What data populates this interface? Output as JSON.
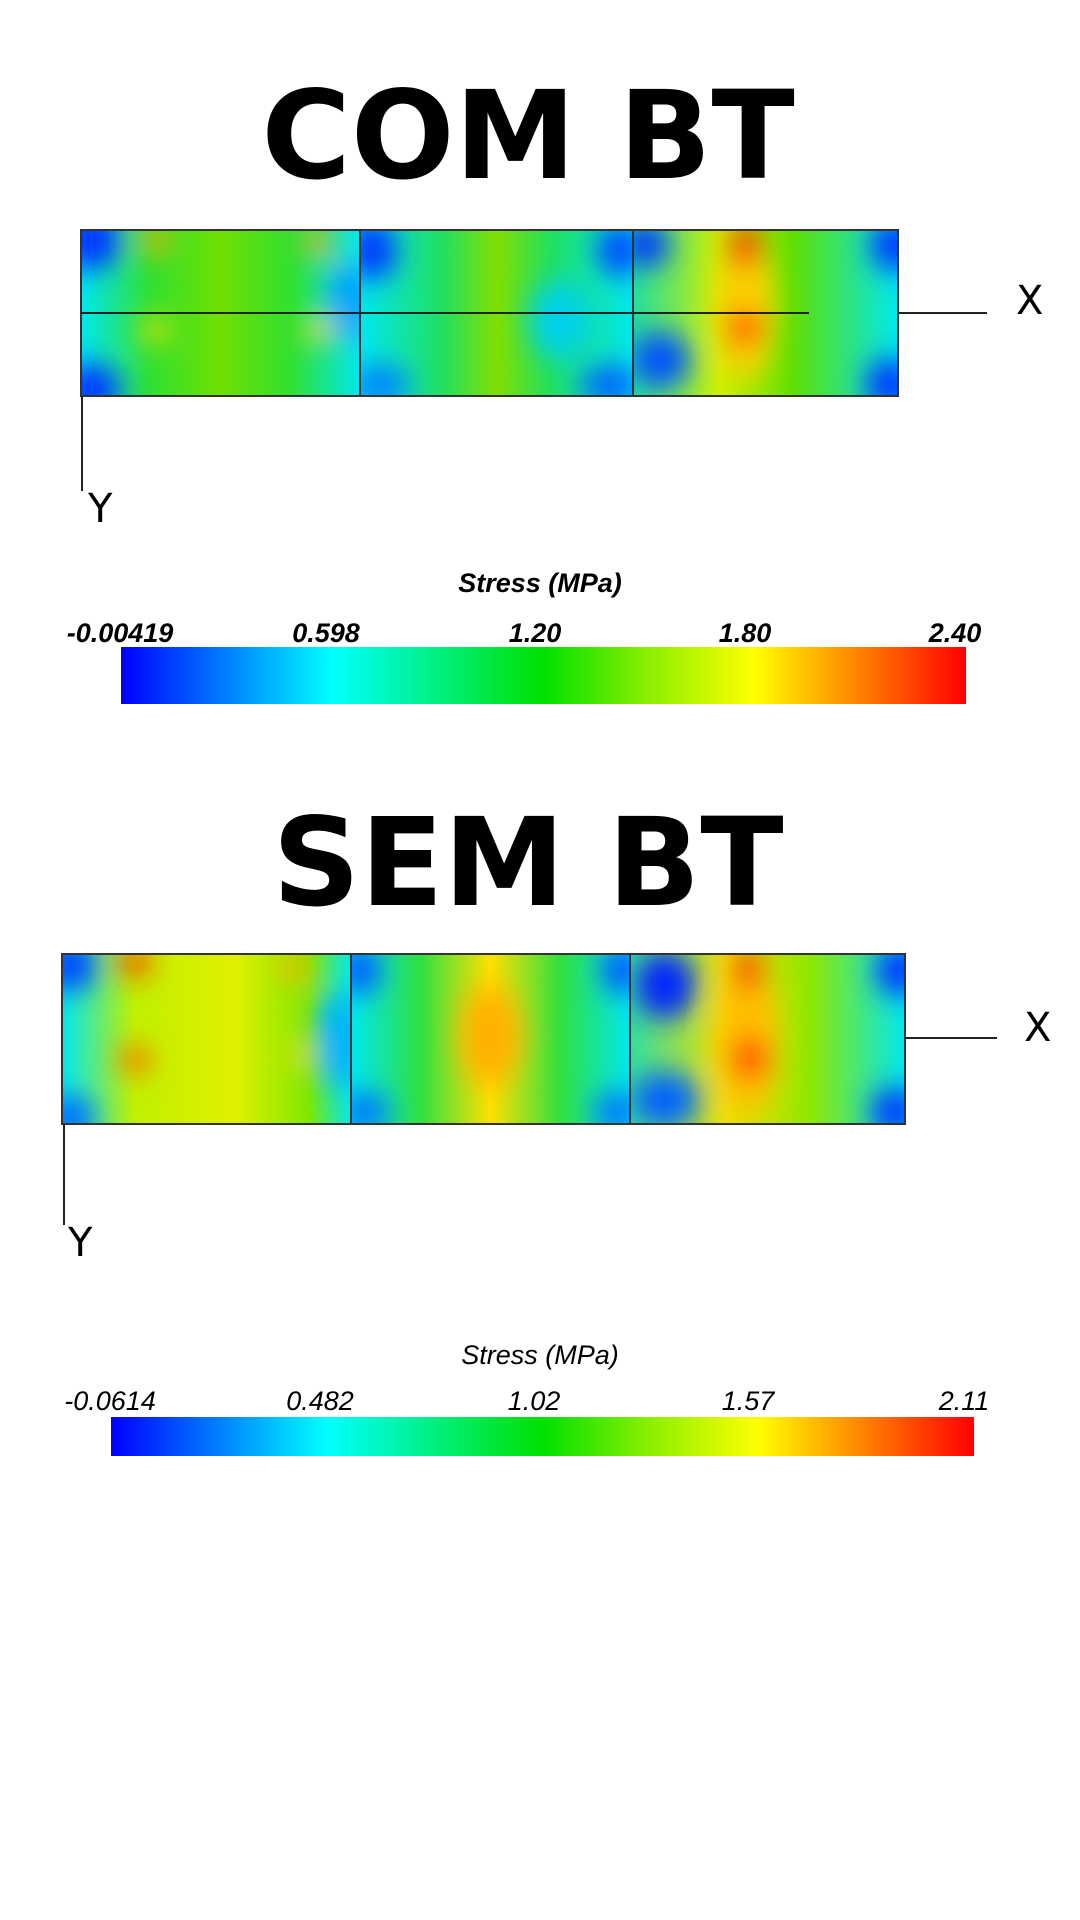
{
  "panels": [
    {
      "title": "COM BT",
      "axis_x": "X",
      "axis_y": "Y",
      "colorbar": {
        "label": "Stress (MPa)",
        "ticks": [
          "-0.00419",
          "0.598",
          "1.20",
          "1.80",
          "2.40"
        ]
      }
    },
    {
      "title": "SEM BT",
      "axis_x": "X",
      "axis_y": "Y",
      "colorbar": {
        "label": "Stress (MPa)",
        "ticks": [
          "-0.0614",
          "0.482",
          "1.02",
          "1.57",
          "2.11"
        ]
      }
    }
  ]
}
